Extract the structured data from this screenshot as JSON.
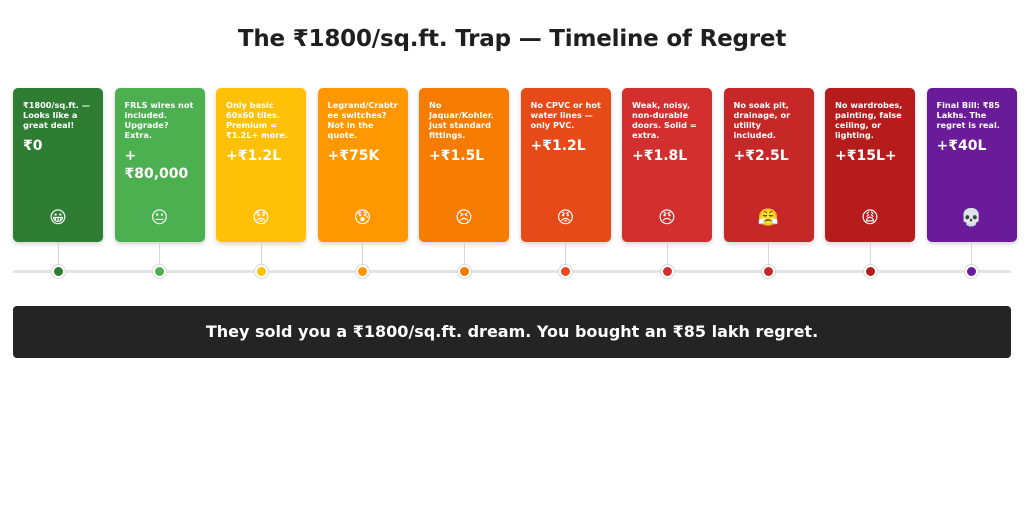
{
  "title": "The ₹1800/sq.ft. Trap — Timeline of Regret",
  "stages": [
    {
      "text": "₹1800/sq.ft. — Looks like a great deal!",
      "amount": "₹0",
      "emoji": "😀",
      "color": "#2e7d32"
    },
    {
      "text": "FRLS wires not included. Upgrade? Extra.",
      "amount": "+₹80,000",
      "emoji": "😐",
      "color": "#4caf50"
    },
    {
      "text": "Only basic 60x60 tiles. Premium = ₹1.2L+ more.",
      "amount": "+₹1.2L",
      "emoji": "😟",
      "color": "#ffc107"
    },
    {
      "text": "Legrand/Crabtree switches? Not in the quote.",
      "amount": "+₹75K",
      "emoji": "😰",
      "color": "#ff9800"
    },
    {
      "text": "No Jaquar/Kohler. Just standard fittings.",
      "amount": "+₹1.5L",
      "emoji": "😣",
      "color": "#f57c00"
    },
    {
      "text": "No CPVC or hot water lines — only PVC.",
      "amount": "+₹1.2L",
      "emoji": "😡",
      "color": "#e64a19"
    },
    {
      "text": "Weak, noisy, non-durable doors. Solid = extra.",
      "amount": "+₹1.8L",
      "emoji": "😠",
      "color": "#d32f2f"
    },
    {
      "text": "No soak pit, drainage, or utility included.",
      "amount": "+₹2.5L",
      "emoji": "😤",
      "color": "#c62828"
    },
    {
      "text": "No wardrobes, painting, false ceiling, or lighting.",
      "amount": "+₹15L+",
      "emoji": "😩",
      "color": "#b71c1c"
    },
    {
      "text": "Final Bill: ₹85 Lakhs. The regret is real.",
      "amount": "+₹40L",
      "emoji": "💀",
      "color": "#6a1b9a"
    }
  ],
  "dot_colors": [
    "#2e7d32",
    "#4caf50",
    "#ffc107",
    "#ff9800",
    "#f57c00",
    "#e64a19",
    "#d32f2f",
    "#c62828",
    "#b71c1c",
    "#6a1b9a"
  ],
  "banner": "They sold you a ₹1800/sq.ft. dream. You bought an ₹85 lakh regret."
}
